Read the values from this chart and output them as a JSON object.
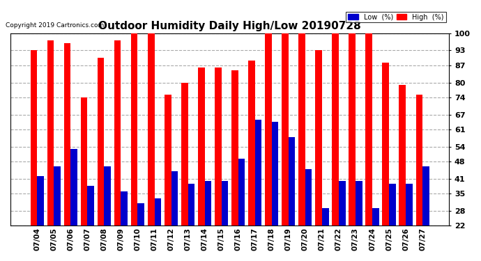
{
  "title": "Outdoor Humidity Daily High/Low 20190728",
  "copyright": "Copyright 2019 Cartronics.com",
  "dates": [
    "07/04",
    "07/05",
    "07/06",
    "07/07",
    "07/08",
    "07/09",
    "07/10",
    "07/11",
    "07/12",
    "07/13",
    "07/14",
    "07/15",
    "07/16",
    "07/17",
    "07/18",
    "07/19",
    "07/20",
    "07/21",
    "07/22",
    "07/23",
    "07/24",
    "07/25",
    "07/26",
    "07/27"
  ],
  "high": [
    93,
    97,
    96,
    74,
    90,
    97,
    100,
    100,
    75,
    80,
    86,
    86,
    85,
    89,
    100,
    100,
    100,
    93,
    100,
    100,
    100,
    88,
    79,
    75
  ],
  "low": [
    42,
    46,
    53,
    38,
    46,
    36,
    31,
    33,
    44,
    39,
    40,
    40,
    49,
    65,
    64,
    58,
    45,
    29,
    40,
    40,
    29,
    39,
    39,
    46
  ],
  "bar_color_high": "#ff0000",
  "bar_color_low": "#0000cc",
  "background_color": "#ffffff",
  "plot_bg_color": "#ffffff",
  "grid_color": "#aaaaaa",
  "title_fontsize": 11,
  "ylim_min": 22,
  "ylim_max": 100,
  "yticks": [
    22,
    28,
    35,
    41,
    48,
    54,
    61,
    67,
    74,
    80,
    87,
    93,
    100
  ],
  "legend_low_label": "Low  (%)",
  "legend_high_label": "High  (%)"
}
